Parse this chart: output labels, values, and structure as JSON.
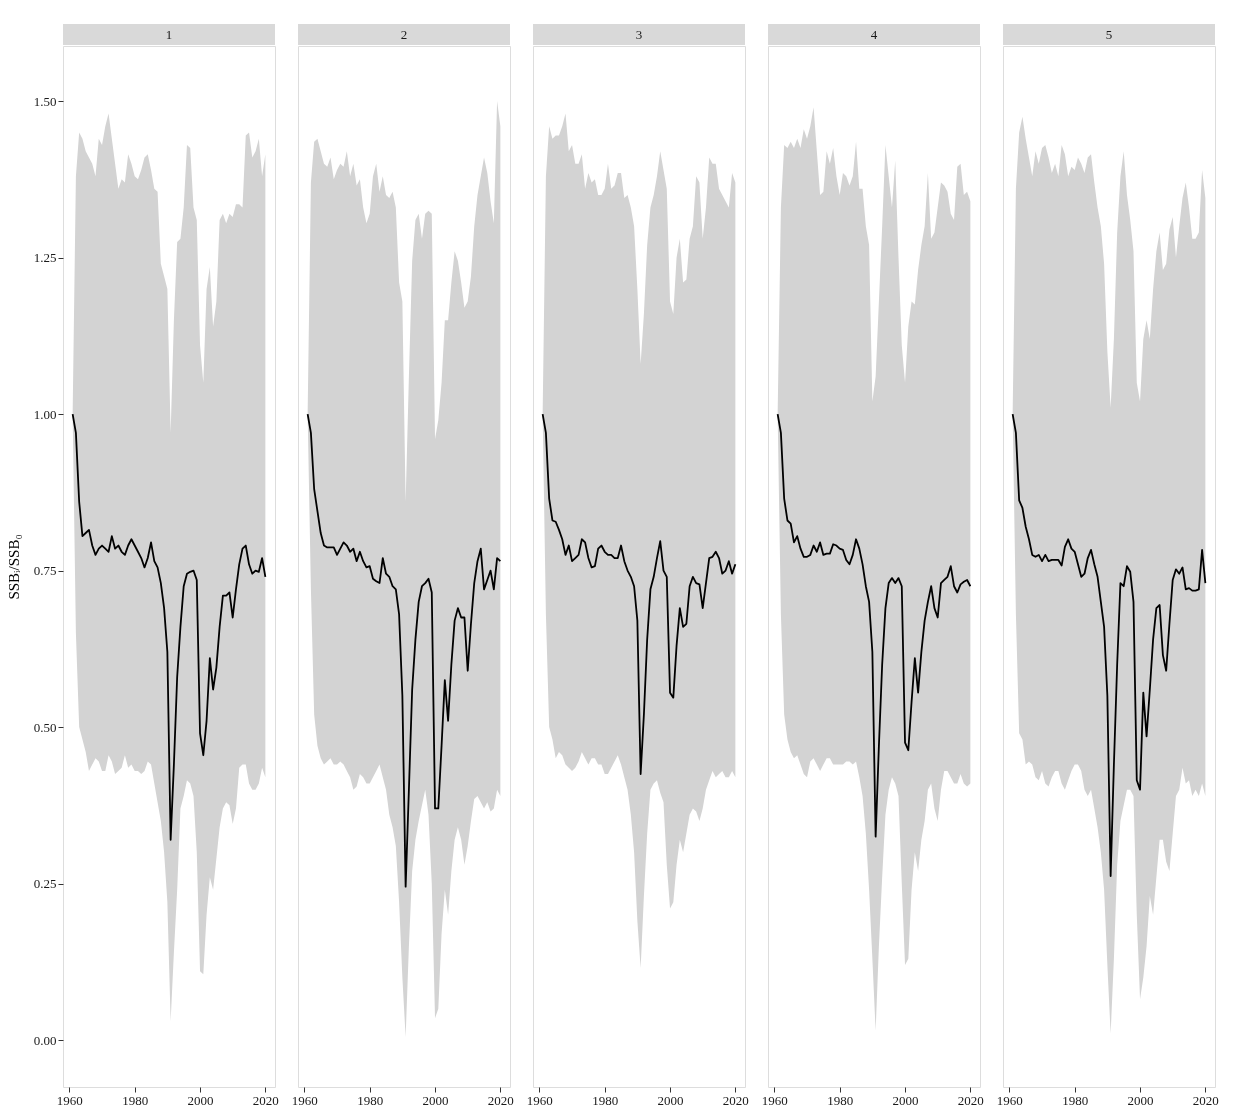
{
  "chart_data": [
    {
      "type": "line",
      "title": "1",
      "ylabel": "SSBᵢ/SSB₀",
      "xlim": [
        1958.05,
        2022.95
      ],
      "xticks": [
        1960,
        1980,
        2000,
        2020
      ],
      "ylim": [
        -0.075,
        1.588
      ],
      "yticks": [
        {
          "value": 0,
          "label": "0.00"
        },
        0.25,
        {
          "value": 0.5,
          "label": "0.50"
        },
        0.75,
        {
          "value": 1,
          "label": "1.00"
        },
        1.25,
        {
          "value": 1.5,
          "label": "1.50"
        }
      ],
      "grid": false,
      "x": [
        1961,
        1962,
        1963,
        1964,
        1965,
        1966,
        1967,
        1968,
        1969,
        1970,
        1971,
        1972,
        1973,
        1974,
        1975,
        1976,
        1977,
        1978,
        1979,
        1980,
        1981,
        1982,
        1983,
        1984,
        1985,
        1986,
        1987,
        1988,
        1989,
        1990,
        1991,
        1992,
        1993,
        1994,
        1995,
        1996,
        1997,
        1998,
        1999,
        2000,
        2001,
        2002,
        2003,
        2004,
        2005,
        2006,
        2007,
        2008,
        2009,
        2010,
        2011,
        2012,
        2013,
        2014,
        2015,
        2016,
        2017,
        2018,
        2019,
        2020
      ],
      "series": [
        {
          "color": "#000000",
          "values": [
            1.0,
            0.97,
            0.86,
            0.805,
            0.81,
            0.815,
            0.79,
            0.775,
            0.785,
            0.79,
            0.785,
            0.78,
            0.805,
            0.785,
            0.79,
            0.78,
            0.775,
            0.79,
            0.8,
            0.79,
            0.78,
            0.77,
            0.755,
            0.77,
            0.795,
            0.765,
            0.755,
            0.73,
            0.69,
            0.62,
            0.32,
            0.44,
            0.58,
            0.66,
            0.725,
            0.745,
            0.748,
            0.75,
            0.735,
            0.49,
            0.455,
            0.51,
            0.61,
            0.56,
            0.595,
            0.66,
            0.71,
            0.71,
            0.715,
            0.675,
            0.72,
            0.76,
            0.785,
            0.79,
            0.76,
            0.745,
            0.75,
            0.748,
            0.77,
            0.74
          ],
          "upper": [
            1.0,
            1.38,
            1.45,
            1.44,
            1.42,
            1.41,
            1.4,
            1.38,
            1.44,
            1.43,
            1.46,
            1.48,
            1.44,
            1.4,
            1.36,
            1.375,
            1.37,
            1.415,
            1.4,
            1.38,
            1.375,
            1.39,
            1.41,
            1.415,
            1.39,
            1.36,
            1.355,
            1.24,
            1.22,
            1.2,
            0.97,
            1.15,
            1.275,
            1.28,
            1.33,
            1.43,
            1.425,
            1.33,
            1.31,
            1.11,
            1.05,
            1.2,
            1.235,
            1.14,
            1.18,
            1.31,
            1.32,
            1.305,
            1.32,
            1.315,
            1.335,
            1.335,
            1.33,
            1.445,
            1.45,
            1.41,
            1.42,
            1.44,
            1.38,
            1.415
          ],
          "lower": [
            1.0,
            0.65,
            0.5,
            0.48,
            0.46,
            0.43,
            0.44,
            0.45,
            0.445,
            0.43,
            0.43,
            0.455,
            0.445,
            0.425,
            0.43,
            0.435,
            0.455,
            0.435,
            0.44,
            0.43,
            0.43,
            0.425,
            0.43,
            0.445,
            0.44,
            0.41,
            0.38,
            0.35,
            0.3,
            0.22,
            0.03,
            0.14,
            0.24,
            0.37,
            0.39,
            0.415,
            0.41,
            0.39,
            0.3,
            0.11,
            0.105,
            0.2,
            0.26,
            0.24,
            0.29,
            0.34,
            0.37,
            0.38,
            0.375,
            0.345,
            0.37,
            0.435,
            0.44,
            0.44,
            0.41,
            0.4,
            0.4,
            0.41,
            0.435,
            0.42
          ]
        }
      ]
    },
    {
      "type": "line",
      "title": "2",
      "tick_labels": "x",
      "xlim": [
        1958.05,
        2022.95
      ],
      "xticks": [
        1960,
        1980,
        2000,
        2020
      ],
      "ylim": [
        -0.075,
        1.588
      ],
      "grid": false,
      "x": [
        1961,
        1962,
        1963,
        1964,
        1965,
        1966,
        1967,
        1968,
        1969,
        1970,
        1971,
        1972,
        1973,
        1974,
        1975,
        1976,
        1977,
        1978,
        1979,
        1980,
        1981,
        1982,
        1983,
        1984,
        1985,
        1986,
        1987,
        1988,
        1989,
        1990,
        1991,
        1992,
        1993,
        1994,
        1995,
        1996,
        1997,
        1998,
        1999,
        2000,
        2001,
        2002,
        2003,
        2004,
        2005,
        2006,
        2007,
        2008,
        2009,
        2010,
        2011,
        2012,
        2013,
        2014,
        2015,
        2016,
        2017,
        2018,
        2019,
        2020
      ],
      "series": [
        {
          "color": "#000000",
          "values": [
            1.0,
            0.97,
            0.88,
            0.845,
            0.81,
            0.79,
            0.787,
            0.787,
            0.787,
            0.775,
            0.785,
            0.795,
            0.79,
            0.78,
            0.785,
            0.765,
            0.78,
            0.765,
            0.755,
            0.757,
            0.737,
            0.733,
            0.73,
            0.77,
            0.745,
            0.74,
            0.725,
            0.72,
            0.68,
            0.55,
            0.245,
            0.4,
            0.56,
            0.64,
            0.7,
            0.725,
            0.73,
            0.737,
            0.715,
            0.37,
            0.37,
            0.47,
            0.575,
            0.51,
            0.6,
            0.67,
            0.69,
            0.675,
            0.675,
            0.59,
            0.665,
            0.73,
            0.765,
            0.785,
            0.72,
            0.735,
            0.75,
            0.72,
            0.77,
            0.765
          ],
          "upper": [
            1.0,
            1.37,
            1.435,
            1.44,
            1.42,
            1.4,
            1.395,
            1.41,
            1.375,
            1.39,
            1.4,
            1.395,
            1.42,
            1.38,
            1.4,
            1.365,
            1.375,
            1.33,
            1.305,
            1.32,
            1.38,
            1.4,
            1.355,
            1.38,
            1.35,
            1.345,
            1.355,
            1.33,
            1.21,
            1.18,
            0.86,
            1.06,
            1.245,
            1.31,
            1.32,
            1.28,
            1.32,
            1.325,
            1.32,
            0.96,
            0.99,
            1.05,
            1.15,
            1.15,
            1.21,
            1.26,
            1.245,
            1.21,
            1.17,
            1.18,
            1.22,
            1.3,
            1.35,
            1.38,
            1.41,
            1.385,
            1.34,
            1.305,
            1.5,
            1.46
          ],
          "lower": [
            1.0,
            0.72,
            0.52,
            0.47,
            0.45,
            0.44,
            0.445,
            0.45,
            0.44,
            0.44,
            0.445,
            0.44,
            0.43,
            0.42,
            0.4,
            0.405,
            0.425,
            0.42,
            0.41,
            0.41,
            0.42,
            0.43,
            0.44,
            0.42,
            0.4,
            0.36,
            0.34,
            0.31,
            0.22,
            0.1,
            0.005,
            0.15,
            0.27,
            0.32,
            0.35,
            0.375,
            0.4,
            0.36,
            0.25,
            0.035,
            0.05,
            0.17,
            0.24,
            0.2,
            0.27,
            0.32,
            0.34,
            0.32,
            0.28,
            0.31,
            0.35,
            0.385,
            0.39,
            0.38,
            0.37,
            0.38,
            0.365,
            0.37,
            0.4,
            0.39
          ]
        }
      ]
    },
    {
      "type": "line",
      "title": "3",
      "tick_labels": "x",
      "xlim": [
        1958.05,
        2022.95
      ],
      "xticks": [
        1960,
        1980,
        2000,
        2020
      ],
      "ylim": [
        -0.075,
        1.588
      ],
      "grid": false,
      "x": [
        1961,
        1962,
        1963,
        1964,
        1965,
        1966,
        1967,
        1968,
        1969,
        1970,
        1971,
        1972,
        1973,
        1974,
        1975,
        1976,
        1977,
        1978,
        1979,
        1980,
        1981,
        1982,
        1983,
        1984,
        1985,
        1986,
        1987,
        1988,
        1989,
        1990,
        1991,
        1992,
        1993,
        1994,
        1995,
        1996,
        1997,
        1998,
        1999,
        2000,
        2001,
        2002,
        2003,
        2004,
        2005,
        2006,
        2007,
        2008,
        2009,
        2010,
        2011,
        2012,
        2013,
        2014,
        2015,
        2016,
        2017,
        2018,
        2019,
        2020
      ],
      "series": [
        {
          "color": "#000000",
          "values": [
            1.0,
            0.97,
            0.865,
            0.83,
            0.828,
            0.815,
            0.8,
            0.775,
            0.79,
            0.765,
            0.77,
            0.775,
            0.8,
            0.795,
            0.77,
            0.755,
            0.757,
            0.785,
            0.79,
            0.78,
            0.775,
            0.775,
            0.77,
            0.77,
            0.79,
            0.765,
            0.75,
            0.74,
            0.725,
            0.67,
            0.425,
            0.52,
            0.64,
            0.72,
            0.74,
            0.77,
            0.797,
            0.75,
            0.74,
            0.555,
            0.547,
            0.63,
            0.69,
            0.66,
            0.665,
            0.725,
            0.74,
            0.73,
            0.728,
            0.69,
            0.73,
            0.77,
            0.772,
            0.78,
            0.77,
            0.745,
            0.75,
            0.765,
            0.745,
            0.76
          ],
          "upper": [
            1.0,
            1.38,
            1.46,
            1.44,
            1.445,
            1.445,
            1.46,
            1.48,
            1.42,
            1.43,
            1.4,
            1.4,
            1.415,
            1.36,
            1.385,
            1.37,
            1.375,
            1.35,
            1.35,
            1.36,
            1.4,
            1.36,
            1.365,
            1.385,
            1.385,
            1.345,
            1.35,
            1.33,
            1.3,
            1.2,
            1.08,
            1.16,
            1.27,
            1.33,
            1.35,
            1.38,
            1.42,
            1.39,
            1.36,
            1.18,
            1.16,
            1.25,
            1.28,
            1.21,
            1.215,
            1.28,
            1.3,
            1.38,
            1.37,
            1.28,
            1.33,
            1.41,
            1.4,
            1.4,
            1.36,
            1.35,
            1.34,
            1.33,
            1.385,
            1.37
          ],
          "lower": [
            1.0,
            0.68,
            0.5,
            0.48,
            0.45,
            0.46,
            0.455,
            0.44,
            0.435,
            0.43,
            0.435,
            0.445,
            0.46,
            0.45,
            0.44,
            0.45,
            0.45,
            0.44,
            0.44,
            0.425,
            0.425,
            0.435,
            0.445,
            0.455,
            0.44,
            0.42,
            0.4,
            0.36,
            0.3,
            0.19,
            0.115,
            0.23,
            0.33,
            0.4,
            0.41,
            0.415,
            0.395,
            0.38,
            0.28,
            0.21,
            0.22,
            0.28,
            0.32,
            0.3,
            0.33,
            0.36,
            0.37,
            0.365,
            0.35,
            0.37,
            0.4,
            0.415,
            0.43,
            0.42,
            0.425,
            0.43,
            0.42,
            0.42,
            0.43,
            0.42
          ]
        }
      ]
    },
    {
      "type": "line",
      "title": "4",
      "tick_labels": "x",
      "xlim": [
        1958.05,
        2022.95
      ],
      "xticks": [
        1960,
        1980,
        2000,
        2020
      ],
      "ylim": [
        -0.075,
        1.588
      ],
      "grid": false,
      "x": [
        1961,
        1962,
        1963,
        1964,
        1965,
        1966,
        1967,
        1968,
        1969,
        1970,
        1971,
        1972,
        1973,
        1974,
        1975,
        1976,
        1977,
        1978,
        1979,
        1980,
        1981,
        1982,
        1983,
        1984,
        1985,
        1986,
        1987,
        1988,
        1989,
        1990,
        1991,
        1992,
        1993,
        1994,
        1995,
        1996,
        1997,
        1998,
        1999,
        2000,
        2001,
        2002,
        2003,
        2004,
        2005,
        2006,
        2007,
        2008,
        2009,
        2010,
        2011,
        2012,
        2013,
        2014,
        2015,
        2016,
        2017,
        2018,
        2019,
        2020
      ],
      "series": [
        {
          "color": "#000000",
          "values": [
            1.0,
            0.97,
            0.865,
            0.83,
            0.825,
            0.795,
            0.805,
            0.785,
            0.772,
            0.772,
            0.775,
            0.79,
            0.78,
            0.795,
            0.775,
            0.777,
            0.777,
            0.792,
            0.79,
            0.785,
            0.783,
            0.767,
            0.76,
            0.775,
            0.8,
            0.785,
            0.76,
            0.725,
            0.7,
            0.62,
            0.325,
            0.47,
            0.6,
            0.69,
            0.73,
            0.738,
            0.73,
            0.738,
            0.725,
            0.475,
            0.463,
            0.54,
            0.61,
            0.555,
            0.62,
            0.67,
            0.7,
            0.725,
            0.69,
            0.675,
            0.73,
            0.735,
            0.74,
            0.757,
            0.725,
            0.715,
            0.728,
            0.732,
            0.735,
            0.725
          ],
          "upper": [
            1.0,
            1.33,
            1.43,
            1.425,
            1.435,
            1.425,
            1.44,
            1.425,
            1.455,
            1.44,
            1.46,
            1.49,
            1.42,
            1.35,
            1.355,
            1.42,
            1.4,
            1.425,
            1.38,
            1.35,
            1.385,
            1.38,
            1.365,
            1.38,
            1.435,
            1.36,
            1.36,
            1.3,
            1.27,
            1.02,
            1.06,
            1.18,
            1.3,
            1.43,
            1.38,
            1.33,
            1.405,
            1.25,
            1.11,
            1.05,
            1.14,
            1.18,
            1.175,
            1.23,
            1.27,
            1.3,
            1.385,
            1.28,
            1.29,
            1.33,
            1.37,
            1.365,
            1.355,
            1.32,
            1.31,
            1.395,
            1.4,
            1.35,
            1.355,
            1.34
          ],
          "lower": [
            1.0,
            0.68,
            0.52,
            0.48,
            0.46,
            0.45,
            0.455,
            0.44,
            0.425,
            0.42,
            0.445,
            0.45,
            0.44,
            0.43,
            0.44,
            0.45,
            0.45,
            0.44,
            0.44,
            0.44,
            0.44,
            0.445,
            0.445,
            0.44,
            0.445,
            0.42,
            0.39,
            0.33,
            0.24,
            0.13,
            0.015,
            0.15,
            0.26,
            0.36,
            0.4,
            0.42,
            0.41,
            0.39,
            0.25,
            0.12,
            0.13,
            0.24,
            0.3,
            0.27,
            0.32,
            0.35,
            0.4,
            0.41,
            0.37,
            0.35,
            0.4,
            0.43,
            0.43,
            0.42,
            0.41,
            0.41,
            0.425,
            0.41,
            0.405,
            0.41
          ]
        }
      ]
    },
    {
      "type": "line",
      "title": "5",
      "tick_labels": "x",
      "xlim": [
        1958.05,
        2022.95
      ],
      "xticks": [
        1960,
        1980,
        2000,
        2020
      ],
      "ylim": [
        -0.075,
        1.588
      ],
      "grid": false,
      "x": [
        1961,
        1962,
        1963,
        1964,
        1965,
        1966,
        1967,
        1968,
        1969,
        1970,
        1971,
        1972,
        1973,
        1974,
        1975,
        1976,
        1977,
        1978,
        1979,
        1980,
        1981,
        1982,
        1983,
        1984,
        1985,
        1986,
        1987,
        1988,
        1989,
        1990,
        1991,
        1992,
        1993,
        1994,
        1995,
        1996,
        1997,
        1998,
        1999,
        2000,
        2001,
        2002,
        2003,
        2004,
        2005,
        2006,
        2007,
        2008,
        2009,
        2010,
        2011,
        2012,
        2013,
        2014,
        2015,
        2016,
        2017,
        2018,
        2019,
        2020
      ],
      "series": [
        {
          "color": "#000000",
          "values": [
            1.0,
            0.97,
            0.862,
            0.85,
            0.82,
            0.8,
            0.775,
            0.772,
            0.775,
            0.765,
            0.775,
            0.765,
            0.767,
            0.767,
            0.767,
            0.758,
            0.788,
            0.8,
            0.785,
            0.78,
            0.76,
            0.74,
            0.745,
            0.77,
            0.783,
            0.76,
            0.74,
            0.7,
            0.66,
            0.55,
            0.262,
            0.44,
            0.6,
            0.73,
            0.725,
            0.757,
            0.748,
            0.7,
            0.415,
            0.4,
            0.555,
            0.485,
            0.56,
            0.64,
            0.69,
            0.695,
            0.615,
            0.59,
            0.665,
            0.735,
            0.752,
            0.745,
            0.755,
            0.72,
            0.722,
            0.718,
            0.718,
            0.72,
            0.783,
            0.73
          ],
          "upper": [
            1.0,
            1.36,
            1.45,
            1.475,
            1.44,
            1.41,
            1.38,
            1.42,
            1.4,
            1.425,
            1.43,
            1.41,
            1.385,
            1.4,
            1.38,
            1.43,
            1.415,
            1.38,
            1.395,
            1.39,
            1.41,
            1.4,
            1.385,
            1.41,
            1.415,
            1.37,
            1.33,
            1.3,
            1.24,
            1.1,
            1.01,
            1.12,
            1.29,
            1.38,
            1.42,
            1.35,
            1.31,
            1.26,
            1.05,
            1.02,
            1.12,
            1.15,
            1.12,
            1.2,
            1.26,
            1.29,
            1.23,
            1.24,
            1.295,
            1.315,
            1.25,
            1.3,
            1.345,
            1.37,
            1.33,
            1.28,
            1.28,
            1.29,
            1.39,
            1.345
          ],
          "lower": [
            1.0,
            0.68,
            0.49,
            0.48,
            0.44,
            0.445,
            0.44,
            0.42,
            0.415,
            0.43,
            0.41,
            0.405,
            0.42,
            0.43,
            0.43,
            0.41,
            0.4,
            0.415,
            0.43,
            0.44,
            0.44,
            0.43,
            0.4,
            0.39,
            0.4,
            0.37,
            0.34,
            0.3,
            0.24,
            0.12,
            0.01,
            0.13,
            0.28,
            0.35,
            0.375,
            0.4,
            0.4,
            0.39,
            0.2,
            0.065,
            0.1,
            0.15,
            0.23,
            0.2,
            0.26,
            0.32,
            0.32,
            0.285,
            0.27,
            0.33,
            0.39,
            0.4,
            0.435,
            0.41,
            0.415,
            0.39,
            0.4,
            0.39,
            0.41,
            0.39
          ]
        }
      ]
    }
  ]
}
